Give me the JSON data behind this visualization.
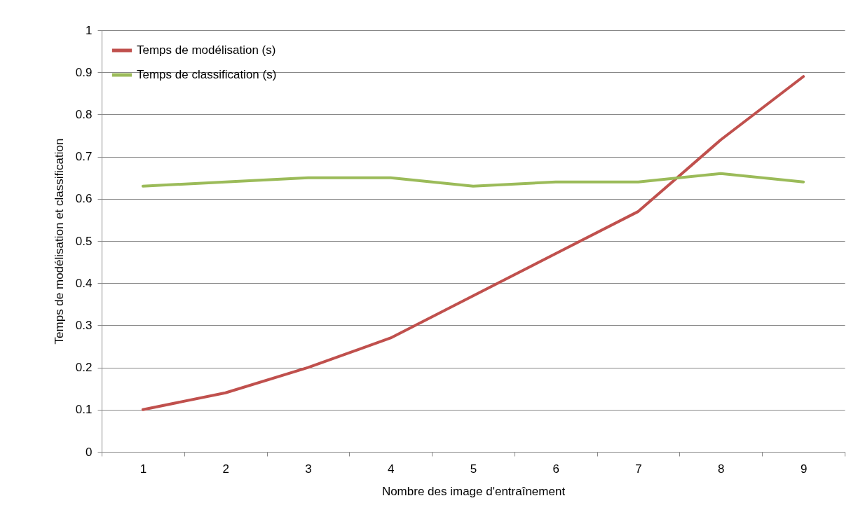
{
  "chart_data": {
    "type": "line",
    "xlabel": "Nombre des image d'entraînement",
    "ylabel": "Temps de modélisation et classification",
    "categories": [
      "1",
      "2",
      "3",
      "4",
      "5",
      "6",
      "7",
      "8",
      "9"
    ],
    "series": [
      {
        "name": "Temps de modélisation (s)",
        "color": "#c0504d",
        "values": [
          0.1,
          0.14,
          0.2,
          0.27,
          0.37,
          0.47,
          0.57,
          0.74,
          0.89
        ]
      },
      {
        "name": "Temps de classification (s)",
        "color": "#9bbb59",
        "values": [
          0.63,
          0.64,
          0.65,
          0.65,
          0.63,
          0.64,
          0.64,
          0.66,
          0.64
        ]
      }
    ],
    "ylim": [
      0,
      1
    ],
    "yticks": [
      0,
      0.1,
      0.2,
      0.3,
      0.4,
      0.5,
      0.6,
      0.7,
      0.8,
      0.9,
      1
    ],
    "grid": "y",
    "legend": "top left",
    "marker": "none",
    "line_style": "solid"
  }
}
